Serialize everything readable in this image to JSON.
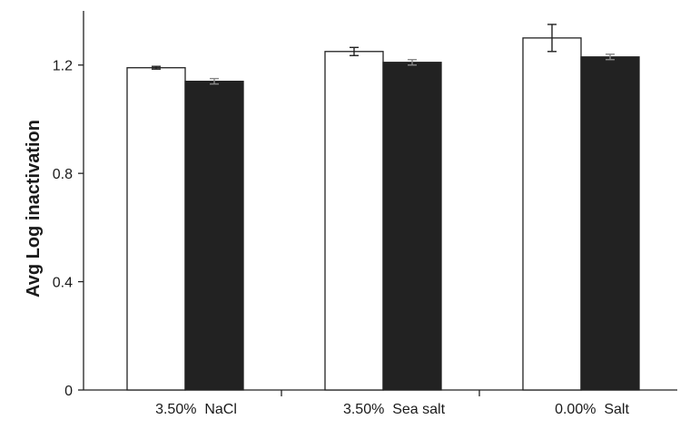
{
  "chart_data": {
    "type": "bar",
    "ylabel": "Avg Log inactivation",
    "xlabel": "",
    "ylim": [
      0,
      1.4
    ],
    "yticks": [
      0,
      0.4,
      0.8,
      1.2
    ],
    "ytick_labels": [
      "0",
      "0.4",
      "0.8",
      "1.2"
    ],
    "categories": [
      "3.50%  NaCl",
      "3.50%  Sea salt",
      "0.00%  Salt"
    ],
    "series": [
      {
        "fill": "#ffffff",
        "values": [
          1.19,
          1.25,
          1.3
        ],
        "errors": [
          0.005,
          0.015,
          0.05
        ]
      },
      {
        "fill": "#222222",
        "values": [
          1.14,
          1.21,
          1.23
        ],
        "errors": [
          0.01,
          0.01,
          0.01
        ]
      }
    ],
    "grid": false,
    "legend": "none"
  }
}
